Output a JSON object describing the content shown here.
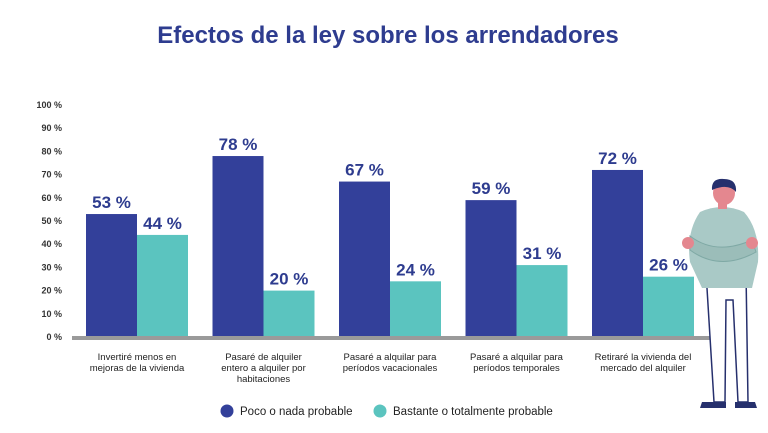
{
  "chart_data": {
    "type": "bar",
    "title": "Efectos de la ley sobre los arrendadores",
    "categories": [
      [
        "Invertiré menos en",
        "mejoras de la vivienda"
      ],
      [
        "Pasaré de alquiler",
        "entero a alquiler por",
        "habitaciones"
      ],
      [
        "Pasaré a alquilar para",
        "períodos vacacionales"
      ],
      [
        "Pasaré a alquilar para",
        "períodos temporales"
      ],
      [
        "Retiraré la vivienda del",
        "mercado del alquiler"
      ]
    ],
    "series": [
      {
        "name": "Poco o nada probable",
        "values": [
          53,
          78,
          67,
          59,
          72
        ],
        "labels": [
          "53 %",
          "78 %",
          "67 %",
          "59 %",
          "72 %"
        ],
        "color": "#33409a"
      },
      {
        "name": "Bastante o totalmente probable",
        "values": [
          44,
          20,
          24,
          31,
          26
        ],
        "labels": [
          "44 %",
          "20 %",
          "24 %",
          "31 %",
          "26 %"
        ],
        "color": "#5bc4bf"
      }
    ],
    "yticks": [
      "0 %",
      "10 %",
      "20 %",
      "30 %",
      "40 %",
      "50 %",
      "60 %",
      "70 %",
      "80 %",
      "90 %",
      "100 %"
    ],
    "ylim": [
      0,
      100
    ],
    "xlabel": "",
    "ylabel": "",
    "grid": false,
    "legend_position": "bottom"
  },
  "colors": {
    "title": "#2e3c8f",
    "baseline": "#9a9a9a",
    "figure_skin": "#e4878f",
    "figure_shirt": "#a9c9c6",
    "figure_hair": "#26306d",
    "figure_pants": "#ffffff",
    "figure_outline": "#26306d"
  }
}
